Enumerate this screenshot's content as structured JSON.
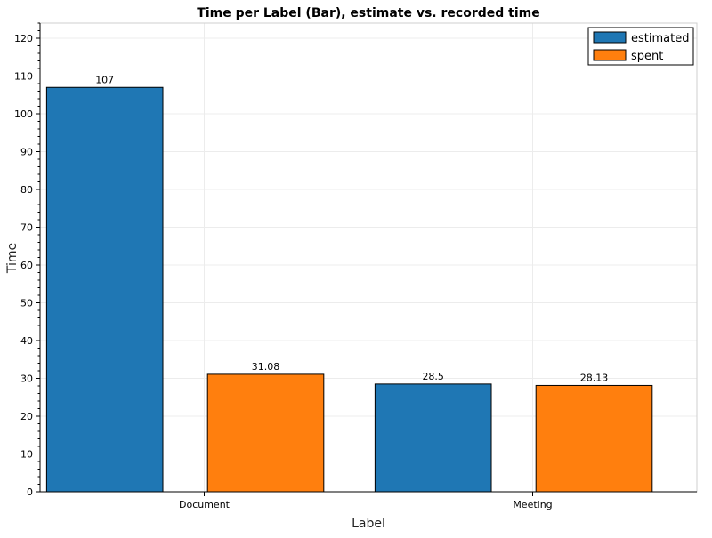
{
  "chart_data": {
    "type": "bar",
    "title": "Time per Label (Bar), estimate vs. recorded time",
    "xlabel": "Label",
    "ylabel": "Time",
    "categories": [
      "Document",
      "Meeting"
    ],
    "series": [
      {
        "name": "estimated",
        "values": [
          107,
          28.5
        ],
        "labels": [
          "107",
          "28.5"
        ],
        "color": "#1f77b4"
      },
      {
        "name": "spent",
        "values": [
          31.08,
          28.13
        ],
        "labels": [
          "31.08",
          "28.13"
        ],
        "color": "#ff7f0e"
      }
    ],
    "ylim": [
      0,
      124
    ],
    "yticks": [
      0,
      10,
      20,
      30,
      40,
      50,
      60,
      70,
      80,
      90,
      100,
      110,
      120
    ],
    "yticks_labels": [
      "0",
      "10",
      "20",
      "30",
      "40",
      "50",
      "60",
      "70",
      "80",
      "90",
      "100",
      "110",
      "120"
    ],
    "minor_yticks_step": 2,
    "grid": true,
    "legend": "top-right"
  }
}
